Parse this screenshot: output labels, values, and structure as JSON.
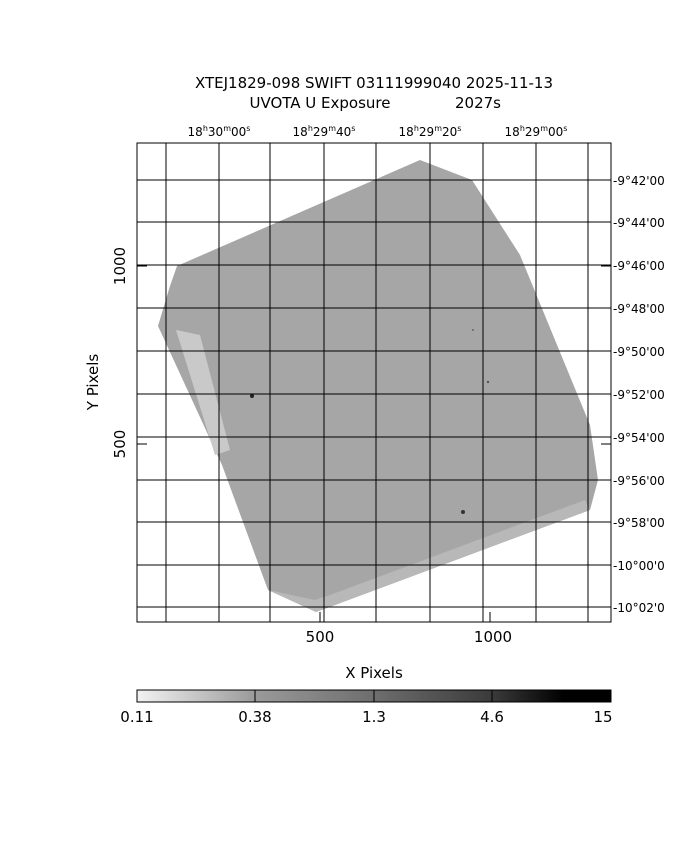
{
  "title": {
    "line1": "XTEJ1829-098 SWIFT 03111999040 2025-11-13",
    "line2_left": "UVOTA U Exposure",
    "line2_right": "2027s"
  },
  "axes": {
    "xlabel": "X Pixels",
    "ylabel": "Y Pixels",
    "x_ticks": [
      "500",
      "1000"
    ],
    "y_ticks": [
      "500",
      "1000"
    ],
    "ra_ticks": [
      {
        "h": "18",
        "m": "30",
        "s": "00"
      },
      {
        "h": "18",
        "m": "29",
        "s": "40"
      },
      {
        "h": "18",
        "m": "29",
        "s": "20"
      },
      {
        "h": "18",
        "m": "29",
        "s": "00"
      }
    ],
    "dec_ticks": [
      "-9°42'00",
      "-9°44'00",
      "-9°46'00",
      "-9°48'00",
      "-9°50'00",
      "-9°52'00",
      "-9°54'00",
      "-9°56'00",
      "-9°58'00",
      "-10°00'0",
      "-10°02'0"
    ]
  },
  "colorbar": {
    "labels": [
      "0.11",
      "0.38",
      "1.3",
      "4.6",
      "15"
    ]
  },
  "colors": {
    "exposure_fill": "#a6a6a6",
    "frame": "#000000",
    "grid": "#000000"
  }
}
